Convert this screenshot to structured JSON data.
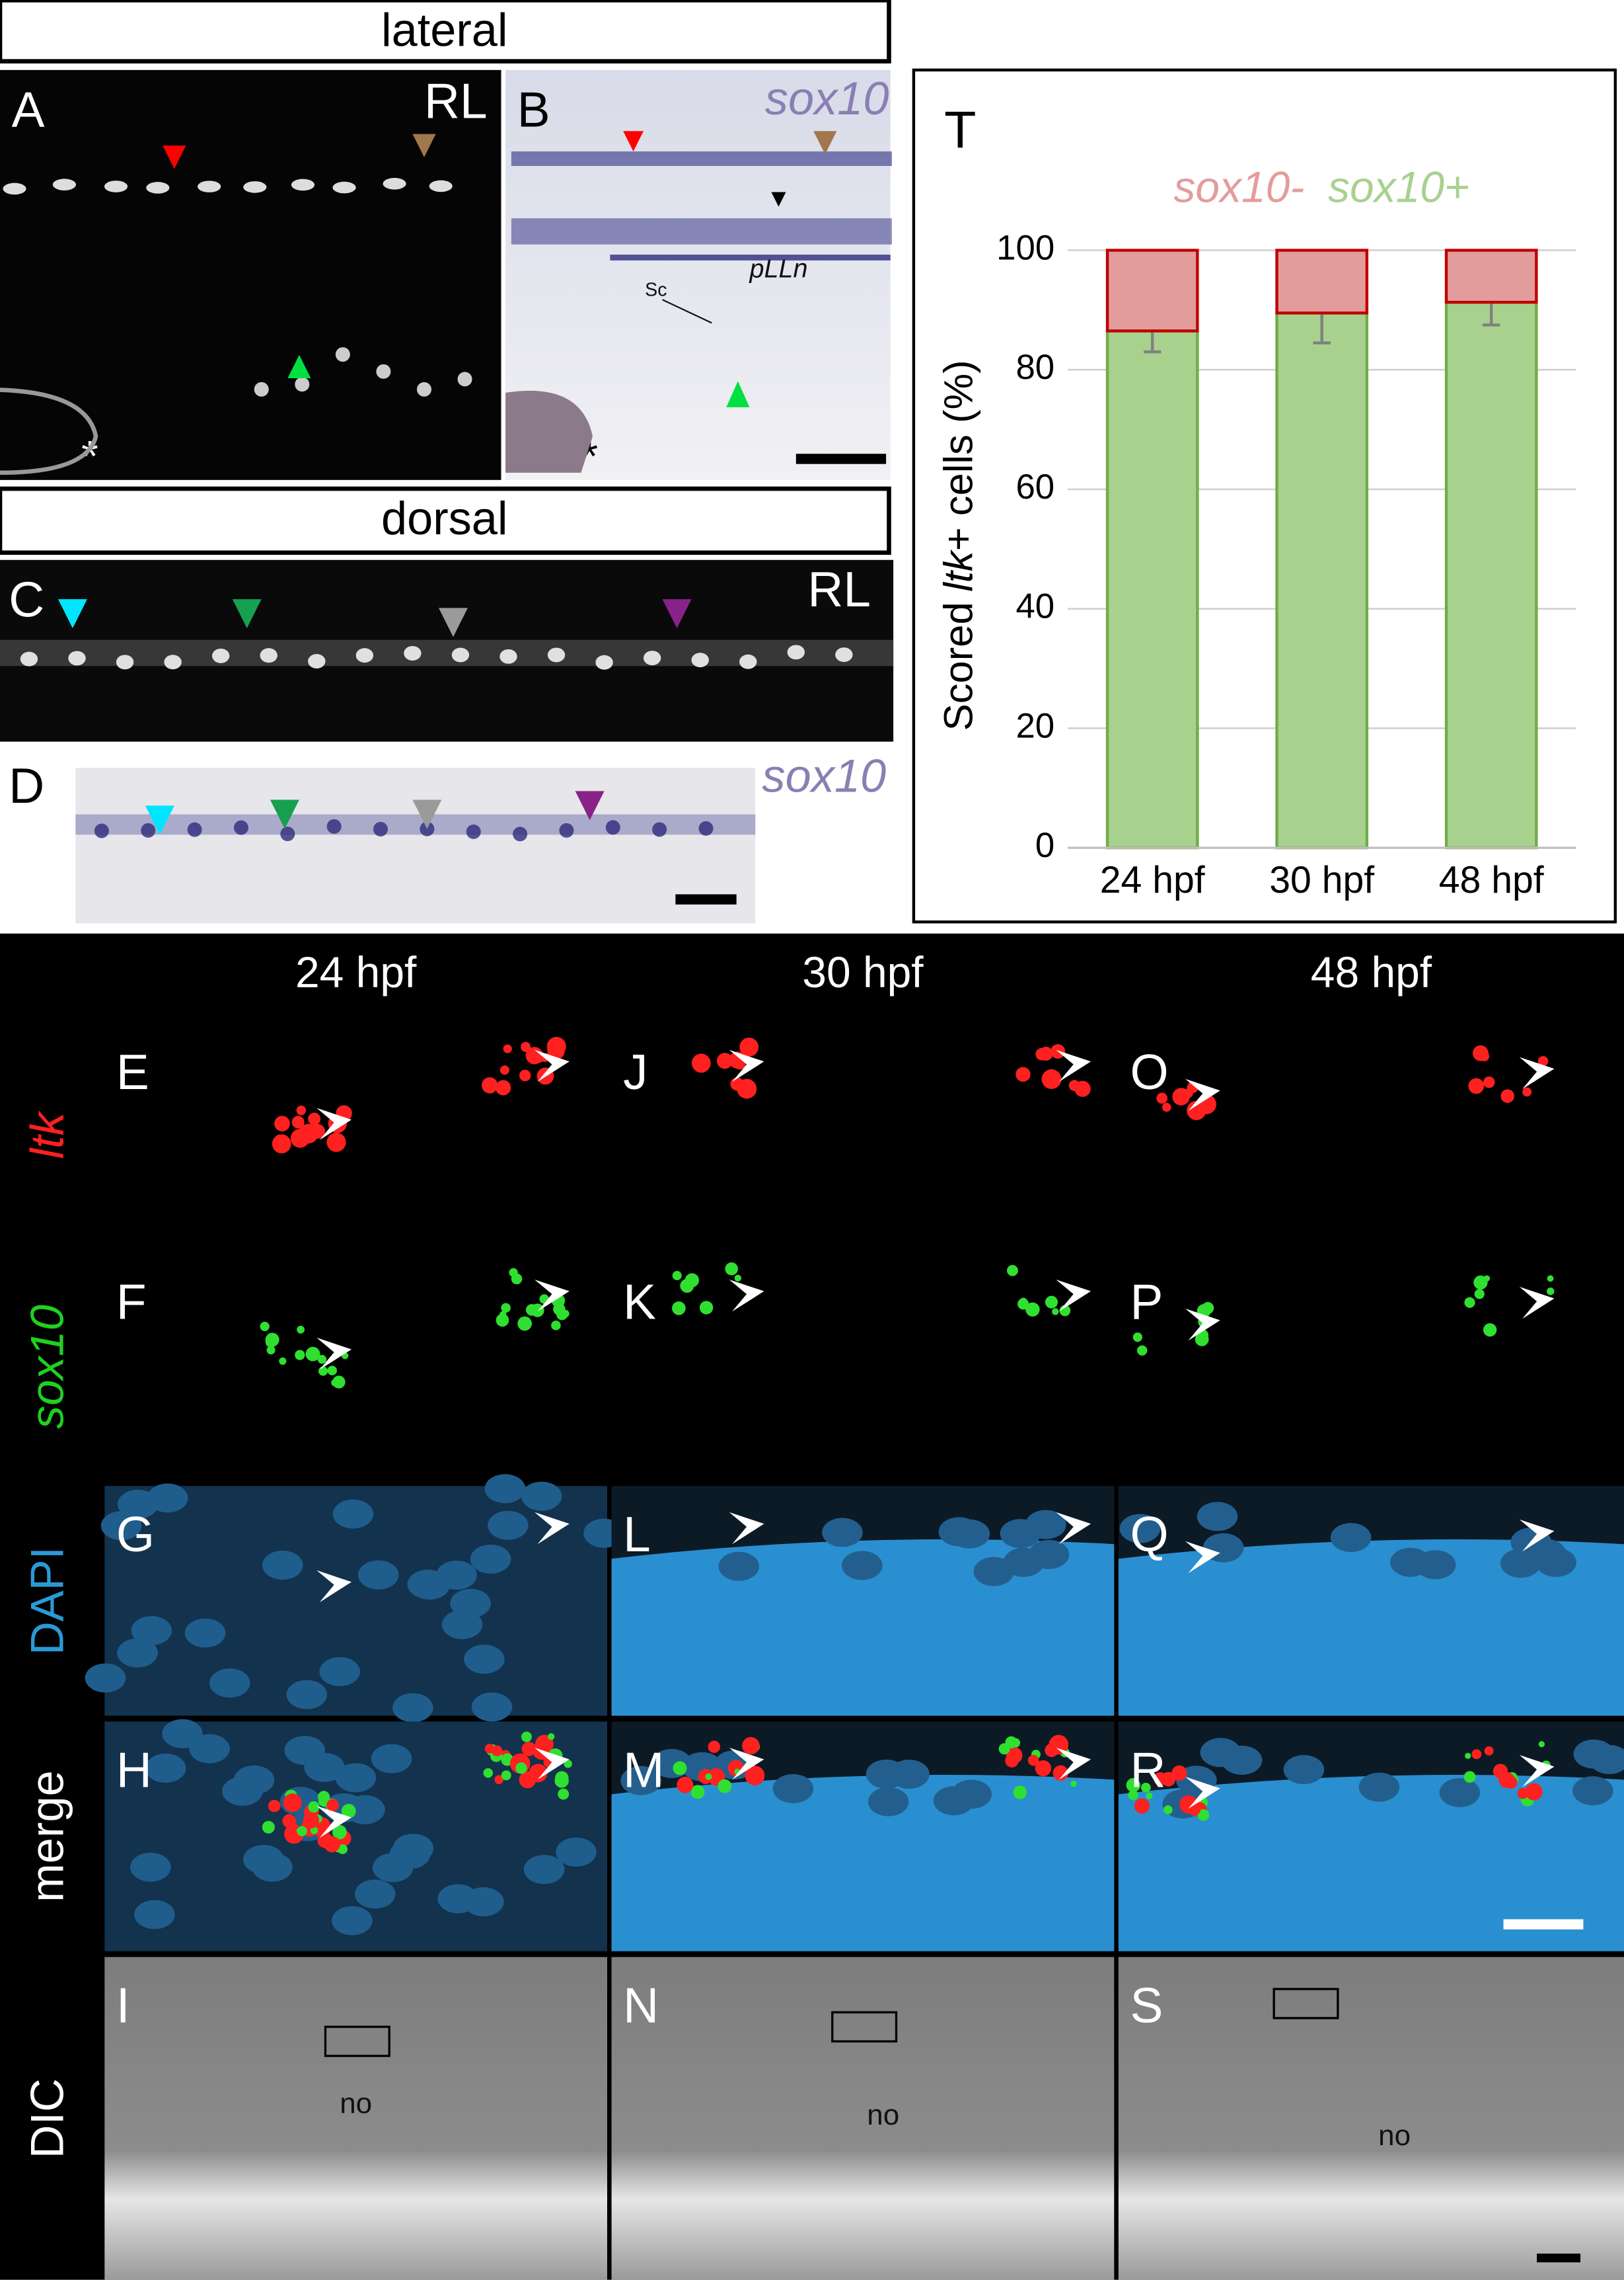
{
  "section_titles": [
    "lateral",
    "dorsal"
  ],
  "panel_A": {
    "label": "A",
    "tag": "RL",
    "mark": "*"
  },
  "panel_B": {
    "label": "B",
    "probe": "sox10",
    "structure": "pLLn",
    "cell": "Sc",
    "mark": "*"
  },
  "panel_C": {
    "label": "C",
    "tag": "RL"
  },
  "panel_D": {
    "label": "D",
    "probe": "sox10"
  },
  "grid": {
    "columns": [
      "24 hpf",
      "30 hpf",
      "48 hpf"
    ],
    "rows": [
      "ltk",
      "sox10",
      "DAPI",
      "merge",
      "DIC"
    ],
    "panel_labels": [
      [
        "E",
        "J",
        "O"
      ],
      [
        "F",
        "K",
        "P"
      ],
      [
        "G",
        "L",
        "Q"
      ],
      [
        "H",
        "M",
        "R"
      ],
      [
        "I",
        "N",
        "S"
      ]
    ],
    "tissue_label": "no"
  },
  "chart_data": {
    "type": "bar",
    "stacked": true,
    "label": "T",
    "ylabel": [
      "Scored",
      "ltk",
      "+ cells (%)"
    ],
    "categories": [
      "24 hpf",
      "30 hpf",
      "48 hpf"
    ],
    "series": [
      {
        "name": "sox10+",
        "color": "#a9d18e",
        "edgecolor": "#70ad47",
        "values": [
          86.5,
          89.5,
          91.3
        ],
        "errors": [
          3.5,
          5,
          3.8
        ]
      },
      {
        "name": "sox10-",
        "color": "#e39c9c",
        "edgecolor": "#c00000",
        "values": [
          13.5,
          10.5,
          8.7
        ]
      }
    ],
    "ylim": [
      0,
      100
    ],
    "yticks": [
      0,
      20,
      40,
      60,
      80,
      100
    ],
    "grid": true,
    "errorbar_color": "#808080"
  }
}
